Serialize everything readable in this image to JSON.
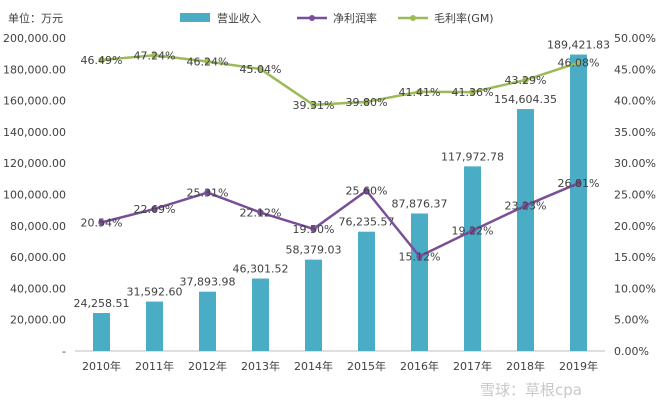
{
  "chart_data": {
    "type": "bar+line",
    "unit_label": "单位：万元",
    "categories": [
      "2010年",
      "2011年",
      "2012年",
      "2013年",
      "2014年",
      "2015年",
      "2016年",
      "2017年",
      "2018年",
      "2019年"
    ],
    "bar_series": {
      "name": "营业收入",
      "color": "#4bacc6",
      "values": [
        24258.51,
        31592.6,
        37893.98,
        46301.52,
        58379.03,
        76235.57,
        87876.37,
        117972.78,
        154604.35,
        189421.83
      ],
      "labels": [
        "24,258.51",
        "31,592.60",
        "37,893.98",
        "46,301.52",
        "58,379.03",
        "76,235.57",
        "87,876.37",
        "117,972.78",
        "154,604.35",
        "189,421.83"
      ]
    },
    "line_series": [
      {
        "name": "净利润率",
        "color": "#7a4f9a",
        "values": [
          20.54,
          22.69,
          25.31,
          22.12,
          19.5,
          25.6,
          15.12,
          19.22,
          23.23,
          26.81
        ],
        "labels": [
          "20.54%",
          "22.69%",
          "25.31%",
          "22.12%",
          "19.50%",
          "25.60%",
          "15.12%",
          "19.22%",
          "23.23%",
          "26.81%"
        ]
      },
      {
        "name": "毛利率(GM)",
        "color": "#9bbb59",
        "values": [
          46.49,
          47.24,
          46.24,
          45.04,
          39.31,
          39.8,
          41.41,
          41.36,
          43.29,
          46.08
        ],
        "labels": [
          "46.49%",
          "47.24%",
          "46.24%",
          "45.04%",
          "39.31%",
          "39.80%",
          "41.41%",
          "41.36%",
          "43.29%",
          "46.08%"
        ]
      }
    ],
    "y_left": {
      "min": 0,
      "max": 200000,
      "ticks": [
        "-",
        "20,000.00",
        "40,000.00",
        "60,000.00",
        "80,000.00",
        "100,000.00",
        "120,000.00",
        "140,000.00",
        "160,000.00",
        "180,000.00",
        "200,000.00"
      ]
    },
    "y_right": {
      "min": 0,
      "max": 50,
      "ticks": [
        "0.00%",
        "5.00%",
        "10.00%",
        "15.00%",
        "20.00%",
        "25.00%",
        "30.00%",
        "35.00%",
        "40.00%",
        "45.00%",
        "50.00%"
      ]
    },
    "legend_position": "top",
    "grid": false
  },
  "watermark": "雪球：草根cpa"
}
